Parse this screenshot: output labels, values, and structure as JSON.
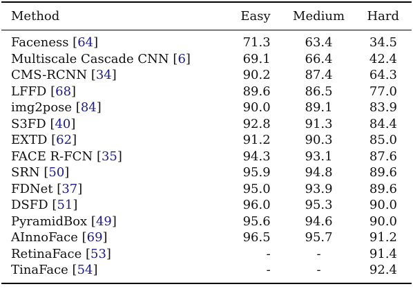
{
  "table": {
    "headers": [
      "Method",
      "Easy",
      "Medium",
      "Hard"
    ],
    "rows": [
      {
        "method": "Faceness",
        "ref": "64",
        "easy": "71.3",
        "medium": "63.4",
        "hard": "34.5"
      },
      {
        "method": "Multiscale Cascade CNN",
        "ref": "6",
        "easy": "69.1",
        "medium": "66.4",
        "hard": "42.4"
      },
      {
        "method": "CMS-RCNN",
        "ref": "34",
        "easy": "90.2",
        "medium": "87.4",
        "hard": "64.3"
      },
      {
        "method": "LFFD",
        "ref": "68",
        "easy": "89.6",
        "medium": "86.5",
        "hard": "77.0"
      },
      {
        "method": "img2pose",
        "ref": "84",
        "easy": "90.0",
        "medium": "89.1",
        "hard": "83.9"
      },
      {
        "method": "S3FD",
        "ref": "40",
        "easy": "92.8",
        "medium": "91.3",
        "hard": "84.4"
      },
      {
        "method": "EXTD",
        "ref": "62",
        "easy": "91.2",
        "medium": "90.3",
        "hard": "85.0"
      },
      {
        "method": "FACE R-FCN",
        "ref": "35",
        "easy": "94.3",
        "medium": "93.1",
        "hard": "87.6"
      },
      {
        "method": "SRN",
        "ref": "50",
        "easy": "95.9",
        "medium": "94.8",
        "hard": "89.6"
      },
      {
        "method": "FDNet",
        "ref": "37",
        "easy": "95.0",
        "medium": "93.9",
        "hard": "89.6"
      },
      {
        "method": "DSFD",
        "ref": "51",
        "easy": "96.0",
        "medium": "95.3",
        "hard": "90.0"
      },
      {
        "method": "PyramidBox",
        "ref": "49",
        "easy": "95.6",
        "medium": "94.6",
        "hard": "90.0"
      },
      {
        "method": "AInnoFace",
        "ref": "69",
        "easy": "96.5",
        "medium": "95.7",
        "hard": "91.2"
      },
      {
        "method": "RetinaFace",
        "ref": "53",
        "easy": "-",
        "medium": "-",
        "hard": "91.4"
      },
      {
        "method": "TinaFace",
        "ref": "54",
        "easy": "-",
        "medium": "-",
        "hard": "92.4"
      }
    ]
  }
}
